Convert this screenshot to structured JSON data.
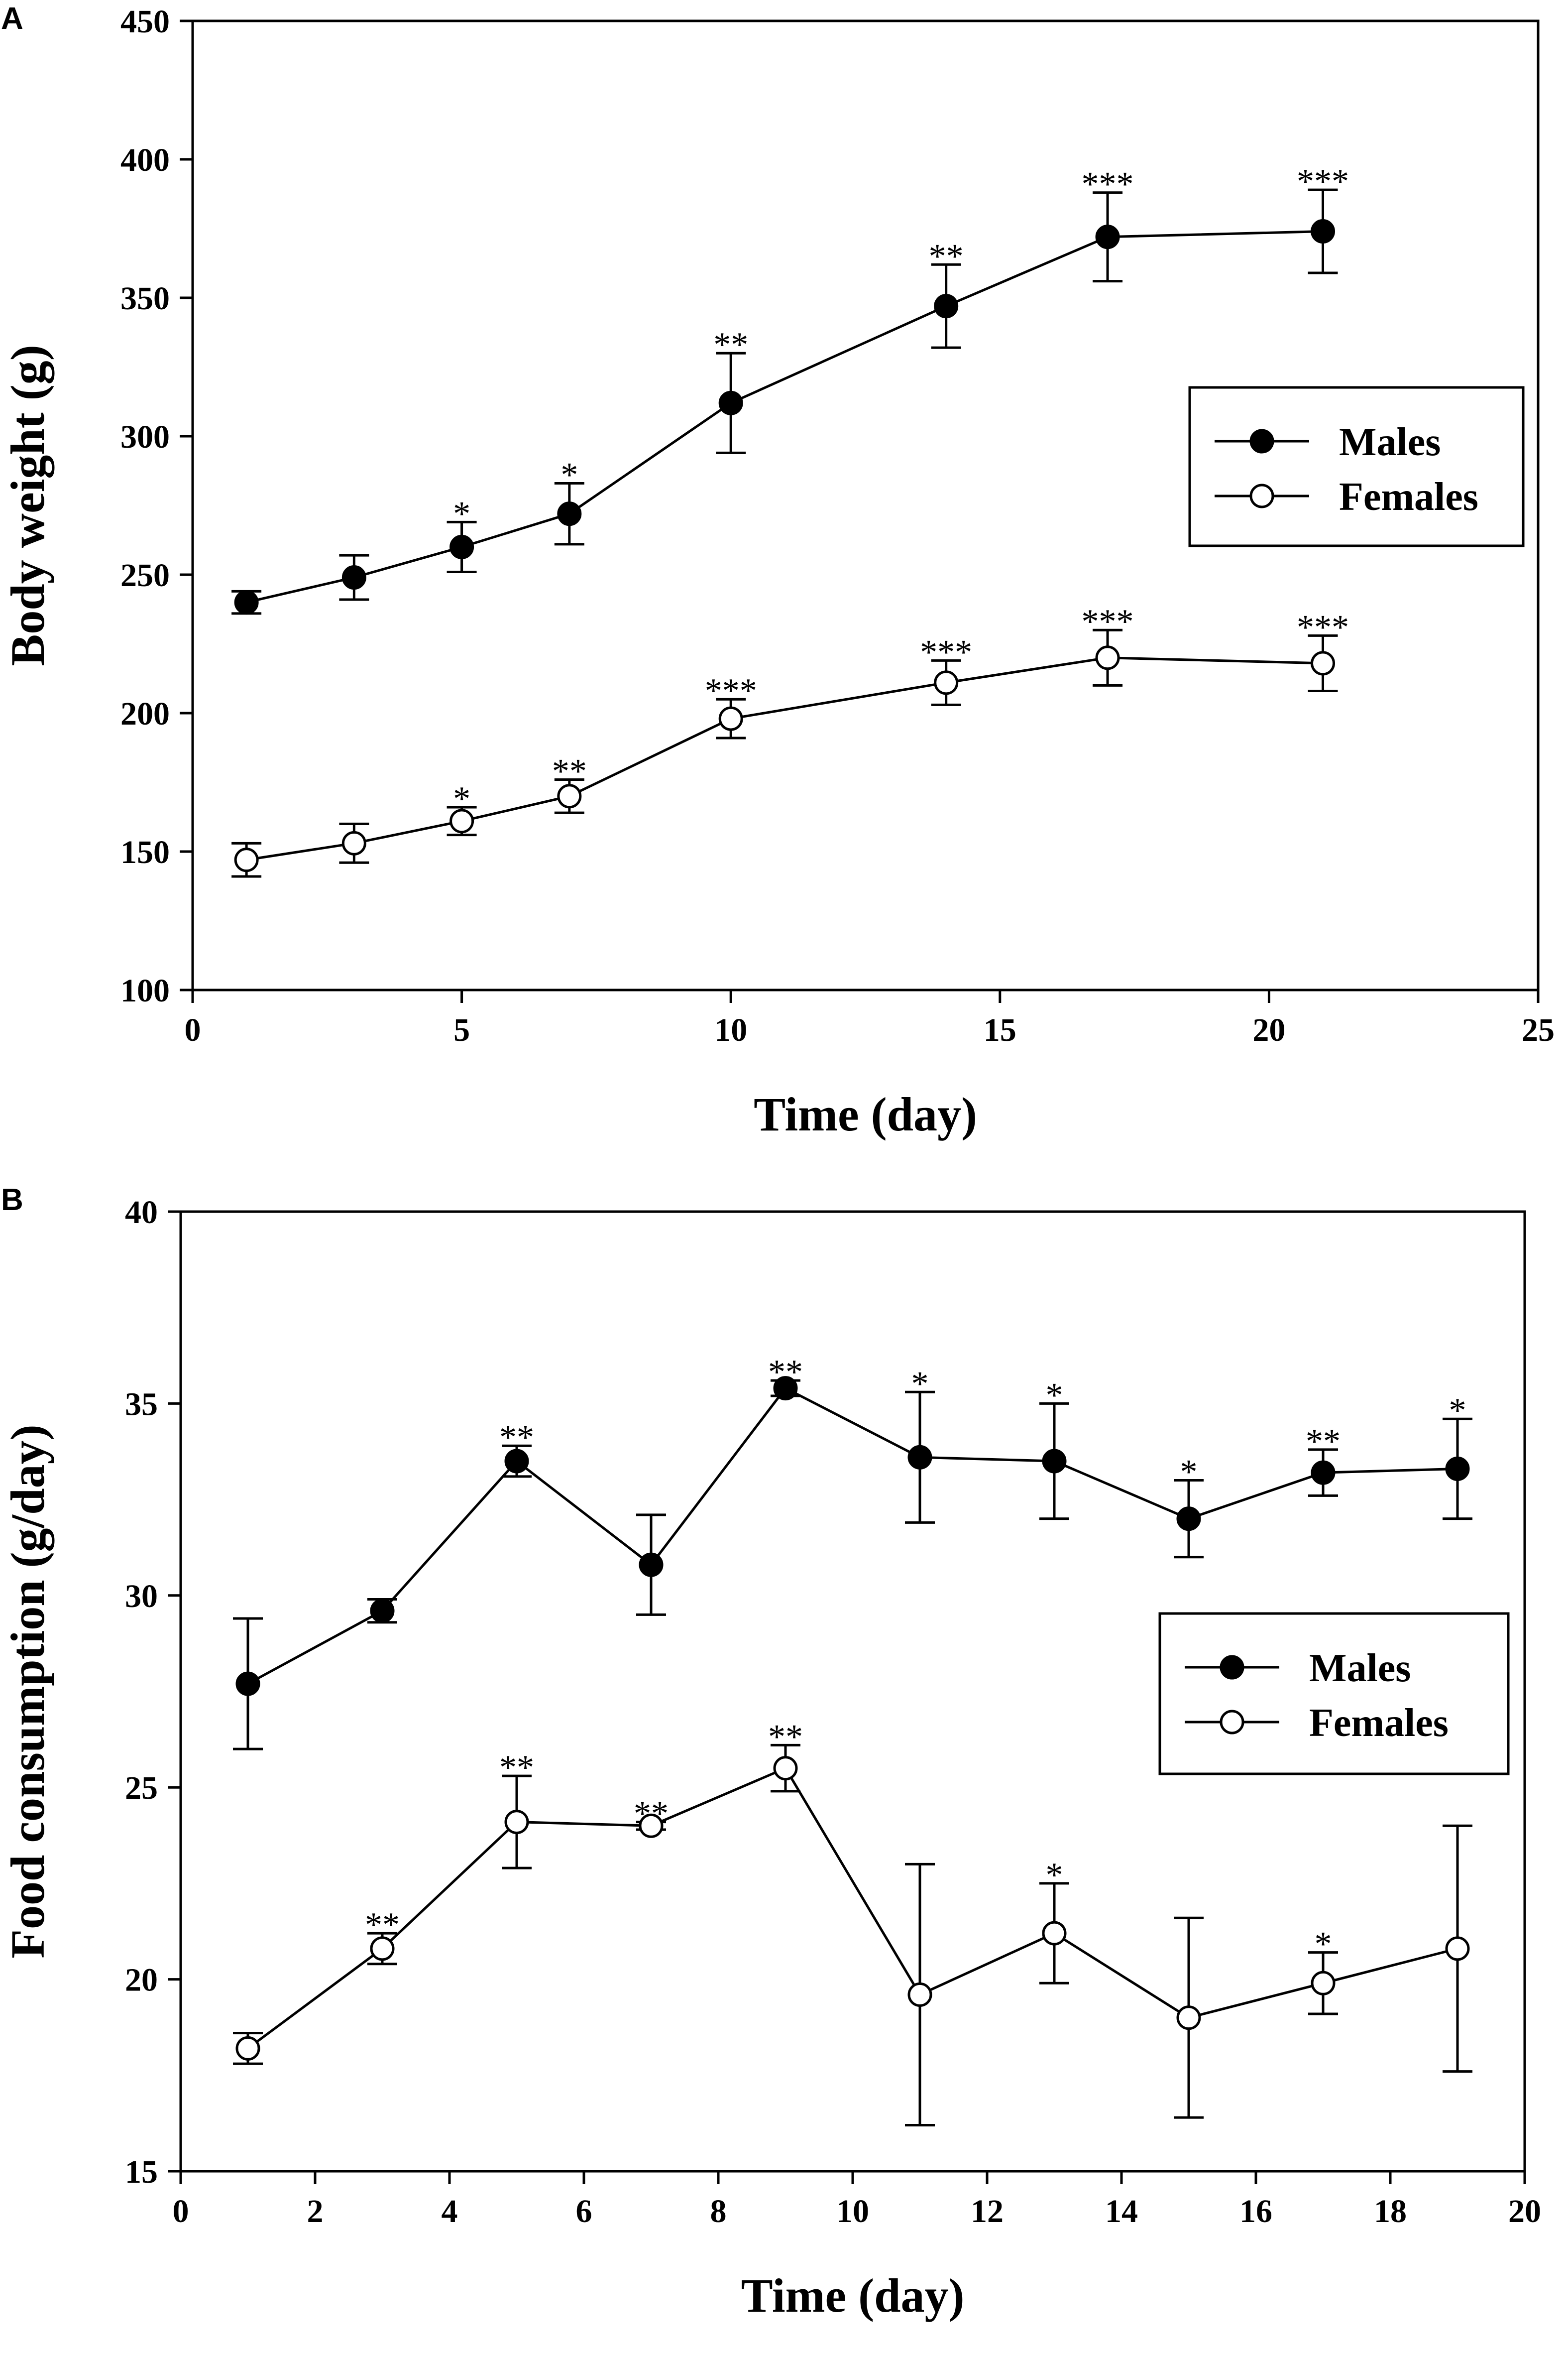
{
  "chart_data": [
    {
      "panel": "A",
      "type": "line",
      "xlabel": "Time (day)",
      "ylabel": "Body weight (g)",
      "xlim": [
        0,
        25
      ],
      "ylim": [
        100,
        450
      ],
      "xticks": [
        0,
        5,
        10,
        15,
        20,
        25
      ],
      "yticks": [
        100,
        150,
        200,
        250,
        300,
        350,
        400,
        450
      ],
      "grid": false,
      "legend": "right, upper-middle",
      "x": [
        1,
        3,
        5,
        7,
        10,
        14,
        17,
        21
      ],
      "series": [
        {
          "name": "Males",
          "marker": "filled-circle",
          "values": [
            240,
            249,
            260,
            272,
            312,
            347,
            372,
            374
          ],
          "errors": [
            4,
            8,
            9,
            11,
            18,
            15,
            16,
            15
          ],
          "significance": [
            "",
            "",
            "*",
            "*",
            "**",
            "**",
            "***",
            "***"
          ]
        },
        {
          "name": "Females",
          "marker": "open-circle",
          "values": [
            147,
            153,
            161,
            170,
            198,
            211,
            220,
            218
          ],
          "errors": [
            6,
            7,
            5,
            6,
            7,
            8,
            10,
            10
          ],
          "significance": [
            "",
            "",
            "*",
            "**",
            "***",
            "***",
            "***",
            "***"
          ]
        }
      ]
    },
    {
      "panel": "B",
      "type": "line",
      "xlabel": "Time (day)",
      "ylabel": "Food consumption (g/day)",
      "xlim": [
        0,
        20
      ],
      "ylim": [
        15,
        40
      ],
      "xticks": [
        0,
        2,
        4,
        6,
        8,
        10,
        12,
        14,
        16,
        18,
        20
      ],
      "yticks": [
        15,
        20,
        25,
        30,
        35,
        40
      ],
      "grid": false,
      "legend": "right, middle",
      "x": [
        1,
        3,
        5,
        7,
        9,
        11,
        13,
        15,
        17,
        19
      ],
      "series": [
        {
          "name": "Males",
          "marker": "filled-circle",
          "values": [
            27.7,
            29.6,
            33.5,
            30.8,
            35.4,
            33.6,
            33.5,
            32.0,
            33.2,
            33.3
          ],
          "errors": [
            1.7,
            0.3,
            0.4,
            1.3,
            0.2,
            1.7,
            1.5,
            1.0,
            0.6,
            1.3
          ],
          "significance": [
            "",
            "",
            "**",
            "",
            "**",
            "*",
            "*",
            "*",
            "**",
            "*"
          ]
        },
        {
          "name": "Females",
          "marker": "open-circle",
          "values": [
            18.2,
            20.8,
            24.1,
            24.0,
            25.5,
            19.6,
            21.2,
            19.0,
            19.9,
            20.8
          ],
          "errors": [
            0.4,
            0.4,
            1.2,
            0.1,
            0.6,
            3.4,
            1.3,
            2.6,
            0.8,
            3.2
          ],
          "significance": [
            "",
            "**",
            "**",
            "**",
            "**",
            "",
            "*",
            "",
            "*",
            ""
          ]
        }
      ]
    }
  ]
}
